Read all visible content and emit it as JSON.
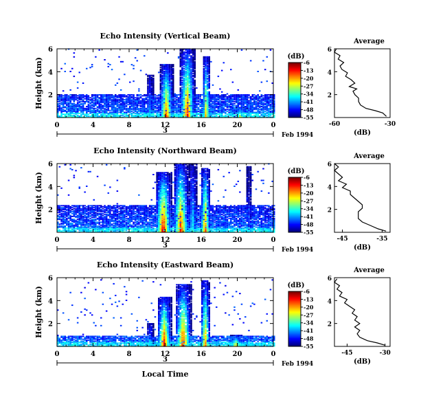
{
  "chart_data": [
    {
      "type": "heatmap",
      "title": "Echo Intensity (Vertical Beam)",
      "ylabel": "Height (km)",
      "xlabel": "",
      "x_ticks": [
        "0",
        "4",
        "8",
        "12",
        "16",
        "20",
        "0"
      ],
      "y_ticks": [
        "2",
        "4",
        "6"
      ],
      "xlim": [
        0,
        24
      ],
      "ylim": [
        0,
        6
      ],
      "date_axis": {
        "day": "3",
        "label": "Feb 1994"
      },
      "colorbar": {
        "unit": "(dB)",
        "ticks": [
          "-6",
          "-13",
          "-20",
          "-27",
          "-34",
          "-41",
          "-48",
          "-55"
        ],
        "range": [
          -55,
          -6
        ]
      },
      "noise_ceiling_km": 2.0,
      "cells": [
        {
          "t0": 11.3,
          "t1": 12.8,
          "top": 4.6,
          "peak": -12
        },
        {
          "t0": 13.5,
          "t1": 15.2,
          "top": 6.0,
          "peak": -10
        },
        {
          "t0": 16.0,
          "t1": 16.9,
          "top": 5.3,
          "peak": -18
        },
        {
          "t0": 9.8,
          "t1": 10.6,
          "top": 3.7,
          "peak": -40
        },
        {
          "t0": 19.5,
          "t1": 21.0,
          "top": 0.9,
          "peak": -25
        }
      ],
      "profile": {
        "title": "Average",
        "xlabel": "(dB)",
        "x_ticks": [
          "-60",
          "-30"
        ],
        "xlim": [
          -60,
          -30
        ],
        "y_ticks": [
          "2",
          "4",
          "6"
        ],
        "points": [
          [
            -32,
            0.1
          ],
          [
            -34,
            0.4
          ],
          [
            -38,
            0.6
          ],
          [
            -43,
            0.8
          ],
          [
            -46,
            1.1
          ],
          [
            -47,
            1.4
          ],
          [
            -47,
            1.7
          ],
          [
            -49,
            2.0
          ],
          [
            -50,
            2.3
          ],
          [
            -48,
            2.5
          ],
          [
            -52,
            2.7
          ],
          [
            -49,
            3.0
          ],
          [
            -51,
            3.3
          ],
          [
            -54,
            3.6
          ],
          [
            -53,
            3.9
          ],
          [
            -56,
            4.2
          ],
          [
            -57,
            4.5
          ],
          [
            -55,
            4.8
          ],
          [
            -58,
            5.1
          ],
          [
            -57,
            5.4
          ],
          [
            -60,
            5.7
          ],
          [
            -59,
            6.0
          ]
        ]
      }
    },
    {
      "type": "heatmap",
      "title": "Echo Intensity (Northward Beam)",
      "ylabel": "Height (km)",
      "xlabel": "",
      "x_ticks": [
        "0",
        "4",
        "8",
        "12",
        "16",
        "20",
        "0"
      ],
      "y_ticks": [
        "2",
        "4",
        "6"
      ],
      "xlim": [
        0,
        24
      ],
      "ylim": [
        0,
        6
      ],
      "date_axis": {
        "day": "3",
        "label": "Feb 1994"
      },
      "colorbar": {
        "unit": "(dB)",
        "ticks": [
          "-6",
          "-13",
          "-20",
          "-27",
          "-34",
          "-41",
          "-48",
          "-55"
        ],
        "range": [
          -55,
          -6
        ]
      },
      "noise_ceiling_km": 2.3,
      "cells": [
        {
          "t0": 10.8,
          "t1": 12.6,
          "top": 5.2,
          "peak": -6
        },
        {
          "t0": 12.8,
          "t1": 14.5,
          "top": 6.0,
          "peak": -10
        },
        {
          "t0": 15.8,
          "t1": 16.9,
          "top": 5.6,
          "peak": -12
        },
        {
          "t0": 14.5,
          "t1": 15.4,
          "top": 6.0,
          "peak": -34
        },
        {
          "t0": 20.8,
          "t1": 21.5,
          "top": 5.7,
          "peak": -48
        }
      ],
      "profile": {
        "title": "Average",
        "xlabel": "(dB)",
        "x_ticks": [
          "-45",
          "-35"
        ],
        "xlim": [
          -47,
          -33
        ],
        "y_ticks": [
          "2",
          "4",
          "6"
        ],
        "points": [
          [
            -34,
            0.1
          ],
          [
            -36,
            0.3
          ],
          [
            -38,
            0.6
          ],
          [
            -40,
            0.9
          ],
          [
            -41,
            1.2
          ],
          [
            -41,
            1.5
          ],
          [
            -41,
            1.8
          ],
          [
            -40,
            2.1
          ],
          [
            -40,
            2.4
          ],
          [
            -41,
            2.7
          ],
          [
            -42,
            3.0
          ],
          [
            -43,
            3.3
          ],
          [
            -43,
            3.6
          ],
          [
            -45,
            3.9
          ],
          [
            -44,
            4.2
          ],
          [
            -46,
            4.5
          ],
          [
            -45,
            4.8
          ],
          [
            -46,
            5.1
          ],
          [
            -47,
            5.4
          ],
          [
            -46,
            5.7
          ],
          [
            -47,
            6.0
          ]
        ]
      }
    },
    {
      "type": "heatmap",
      "title": "Echo Intensity (Eastward Beam)",
      "ylabel": "Height (km)",
      "xlabel": "Local Time",
      "x_ticks": [
        "0",
        "4",
        "8",
        "12",
        "16",
        "20",
        "0"
      ],
      "y_ticks": [
        "2",
        "4",
        "6"
      ],
      "xlim": [
        0,
        24
      ],
      "ylim": [
        0,
        6
      ],
      "date_axis": {
        "day": "3",
        "label": "Feb 1994"
      },
      "colorbar": {
        "unit": "(dB)",
        "ticks": [
          "-6",
          "-13",
          "-20",
          "-27",
          "-34",
          "-41",
          "-48",
          "-55"
        ],
        "range": [
          -55,
          -6
        ]
      },
      "noise_ceiling_km": 0.9,
      "cells": [
        {
          "t0": 11.0,
          "t1": 12.6,
          "top": 4.3,
          "peak": -10
        },
        {
          "t0": 13.0,
          "t1": 14.8,
          "top": 5.4,
          "peak": -10
        },
        {
          "t0": 15.8,
          "t1": 16.9,
          "top": 5.7,
          "peak": -15
        },
        {
          "t0": 9.9,
          "t1": 10.6,
          "top": 2.0,
          "peak": -34
        },
        {
          "t0": 19.0,
          "t1": 20.5,
          "top": 1.0,
          "peak": -20
        }
      ],
      "profile": {
        "title": "Average",
        "xlabel": "(dB)",
        "x_ticks": [
          "-45",
          "-30"
        ],
        "xlim": [
          -50,
          -28
        ],
        "y_ticks": [
          "2",
          "4",
          "6"
        ],
        "points": [
          [
            -30,
            0.1
          ],
          [
            -33,
            0.3
          ],
          [
            -37,
            0.5
          ],
          [
            -40,
            0.8
          ],
          [
            -41,
            1.1
          ],
          [
            -40,
            1.4
          ],
          [
            -42,
            1.7
          ],
          [
            -40,
            2.0
          ],
          [
            -42,
            2.3
          ],
          [
            -41,
            2.6
          ],
          [
            -43,
            2.9
          ],
          [
            -42,
            3.2
          ],
          [
            -44,
            3.5
          ],
          [
            -46,
            3.8
          ],
          [
            -45,
            4.1
          ],
          [
            -48,
            4.4
          ],
          [
            -47,
            4.7
          ],
          [
            -49,
            5.0
          ],
          [
            -48,
            5.3
          ],
          [
            -50,
            5.6
          ],
          [
            -49,
            5.9
          ]
        ]
      }
    }
  ]
}
